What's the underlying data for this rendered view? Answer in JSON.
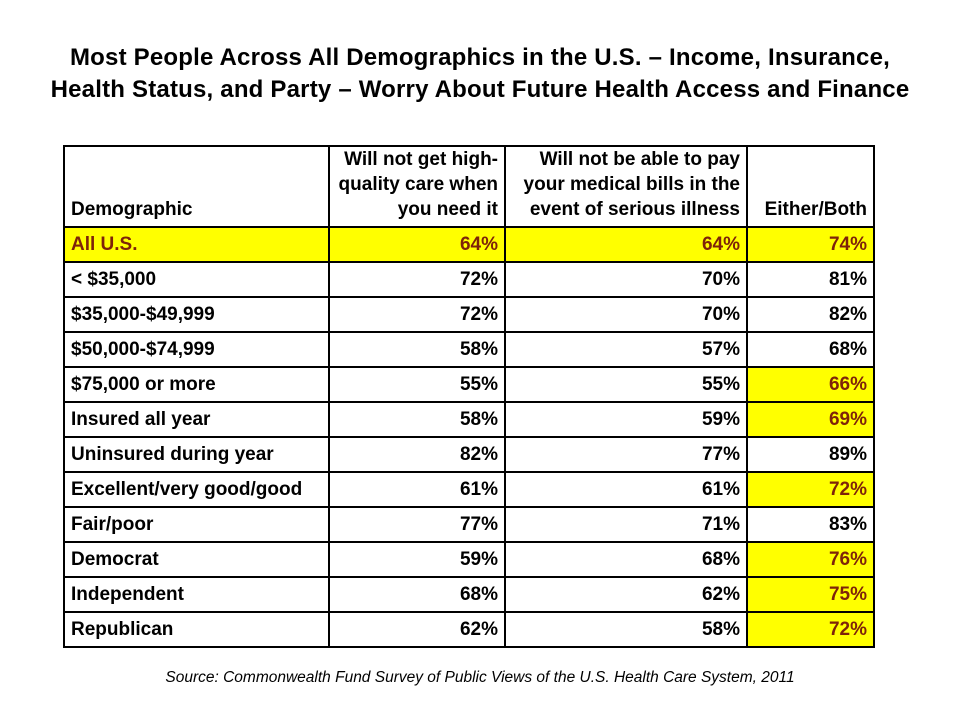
{
  "slide": {
    "title_line1": "Most People Across All Demographics in the U.S. – Income, Insurance,",
    "title_line2": "Health Status, and Party – Worry About Future Health Access and Finance",
    "source": "Source: Commonwealth Fund Survey of Public Views of the U.S. Health Care System, 2011"
  },
  "colors": {
    "highlight_yellow": "#FFFF00",
    "highlight_text_red": "#7E2309",
    "text_black": "#000000"
  },
  "chart_data": {
    "type": "table",
    "title": "Most People Across All Demographics in the U.S. – Income, Insurance, Health Status, and Party – Worry About Future Health Access and Finance",
    "columns": [
      "Demographic",
      "Will not get high-quality care when you need it",
      "Will not be able to pay your medical bills in the event of serious illness",
      "Either/Both"
    ],
    "rows": [
      {
        "label": "All U.S.",
        "values": [
          "64%",
          "64%",
          "74%"
        ],
        "highlight": "row"
      },
      {
        "label": "< $35,000",
        "values": [
          "72%",
          "70%",
          "81%"
        ],
        "highlight": "none"
      },
      {
        "label": "$35,000-$49,999",
        "values": [
          "72%",
          "70%",
          "82%"
        ],
        "highlight": "none"
      },
      {
        "label": "$50,000-$74,999",
        "values": [
          "58%",
          "57%",
          "68%"
        ],
        "highlight": "none"
      },
      {
        "label": "$75,000 or more",
        "values": [
          "55%",
          "55%",
          "66%"
        ],
        "highlight": "last"
      },
      {
        "label": "Insured all year",
        "values": [
          "58%",
          "59%",
          "69%"
        ],
        "highlight": "last"
      },
      {
        "label": "Uninsured during year",
        "values": [
          "82%",
          "77%",
          "89%"
        ],
        "highlight": "none"
      },
      {
        "label": "Excellent/very good/good",
        "values": [
          "61%",
          "61%",
          "72%"
        ],
        "highlight": "last"
      },
      {
        "label": "Fair/poor",
        "values": [
          "77%",
          "71%",
          "83%"
        ],
        "highlight": "none"
      },
      {
        "label": "Democrat",
        "values": [
          "59%",
          "68%",
          "76%"
        ],
        "highlight": "last"
      },
      {
        "label": "Independent",
        "values": [
          "68%",
          "62%",
          "75%"
        ],
        "highlight": "last"
      },
      {
        "label": "Republican",
        "values": [
          "62%",
          "58%",
          "72%"
        ],
        "highlight": "last"
      }
    ],
    "source": "Source: Commonwealth Fund Survey of Public Views of the U.S. Health Care System, 2011",
    "highlight_note": "Yellow cells mark emphasized values; highlighted text is dark red on yellow"
  }
}
